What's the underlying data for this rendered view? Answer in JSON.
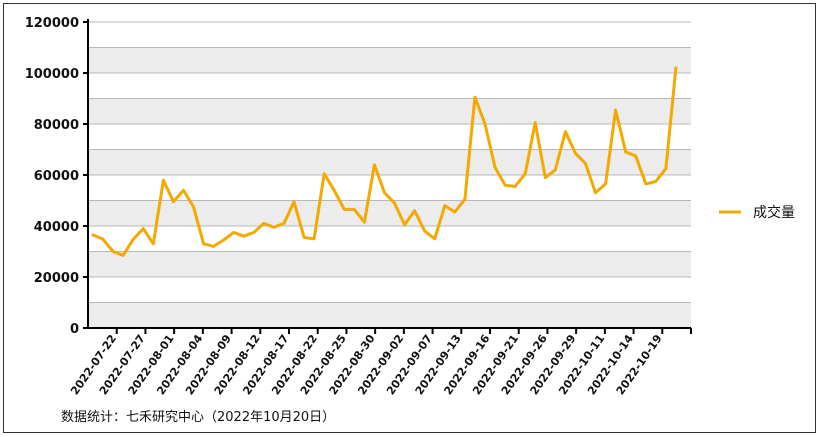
{
  "chart_data": {
    "type": "line",
    "title": "",
    "xlabel": "",
    "ylabel": "",
    "ylim": [
      0,
      120000
    ],
    "yticks": [
      0,
      20000,
      40000,
      60000,
      80000,
      100000,
      120000
    ],
    "grid": "alternating horizontal bands",
    "legend_position": "right",
    "x_labels": [
      "2022-07-22",
      "2022-07-27",
      "2022-08-01",
      "2022-08-04",
      "2022-08-09",
      "2022-08-12",
      "2022-08-17",
      "2022-08-22",
      "2022-08-25",
      "2022-08-30",
      "2022-09-02",
      "2022-09-07",
      "2022-09-13",
      "2022-09-16",
      "2022-09-21",
      "2022-09-26",
      "2022-09-29",
      "2022-10-11",
      "2022-10-14",
      "2022-10-19"
    ],
    "series": [
      {
        "name": "成交量",
        "color": "#f5a800",
        "values": [
          36500,
          34800,
          30000,
          28500,
          34800,
          39000,
          33000,
          58000,
          49500,
          54000,
          47500,
          33000,
          32000,
          34500,
          37500,
          36000,
          37500,
          41000,
          39500,
          41000,
          49500,
          35500,
          35000,
          60500,
          54000,
          46500,
          46500,
          41500,
          64000,
          53000,
          49000,
          40500,
          46000,
          38000,
          35000,
          48000,
          45500,
          50500,
          90500,
          80000,
          63000,
          56000,
          55500,
          60500,
          80500,
          59000,
          62000,
          77000,
          68500,
          64500,
          53000,
          56500,
          85500,
          69000,
          67500,
          56500,
          57500,
          62500,
          102000
        ]
      }
    ]
  },
  "legend": {
    "label": "成交量"
  },
  "footer": {
    "source": "数据统计：七禾研究中心（2022年10月20日）"
  }
}
